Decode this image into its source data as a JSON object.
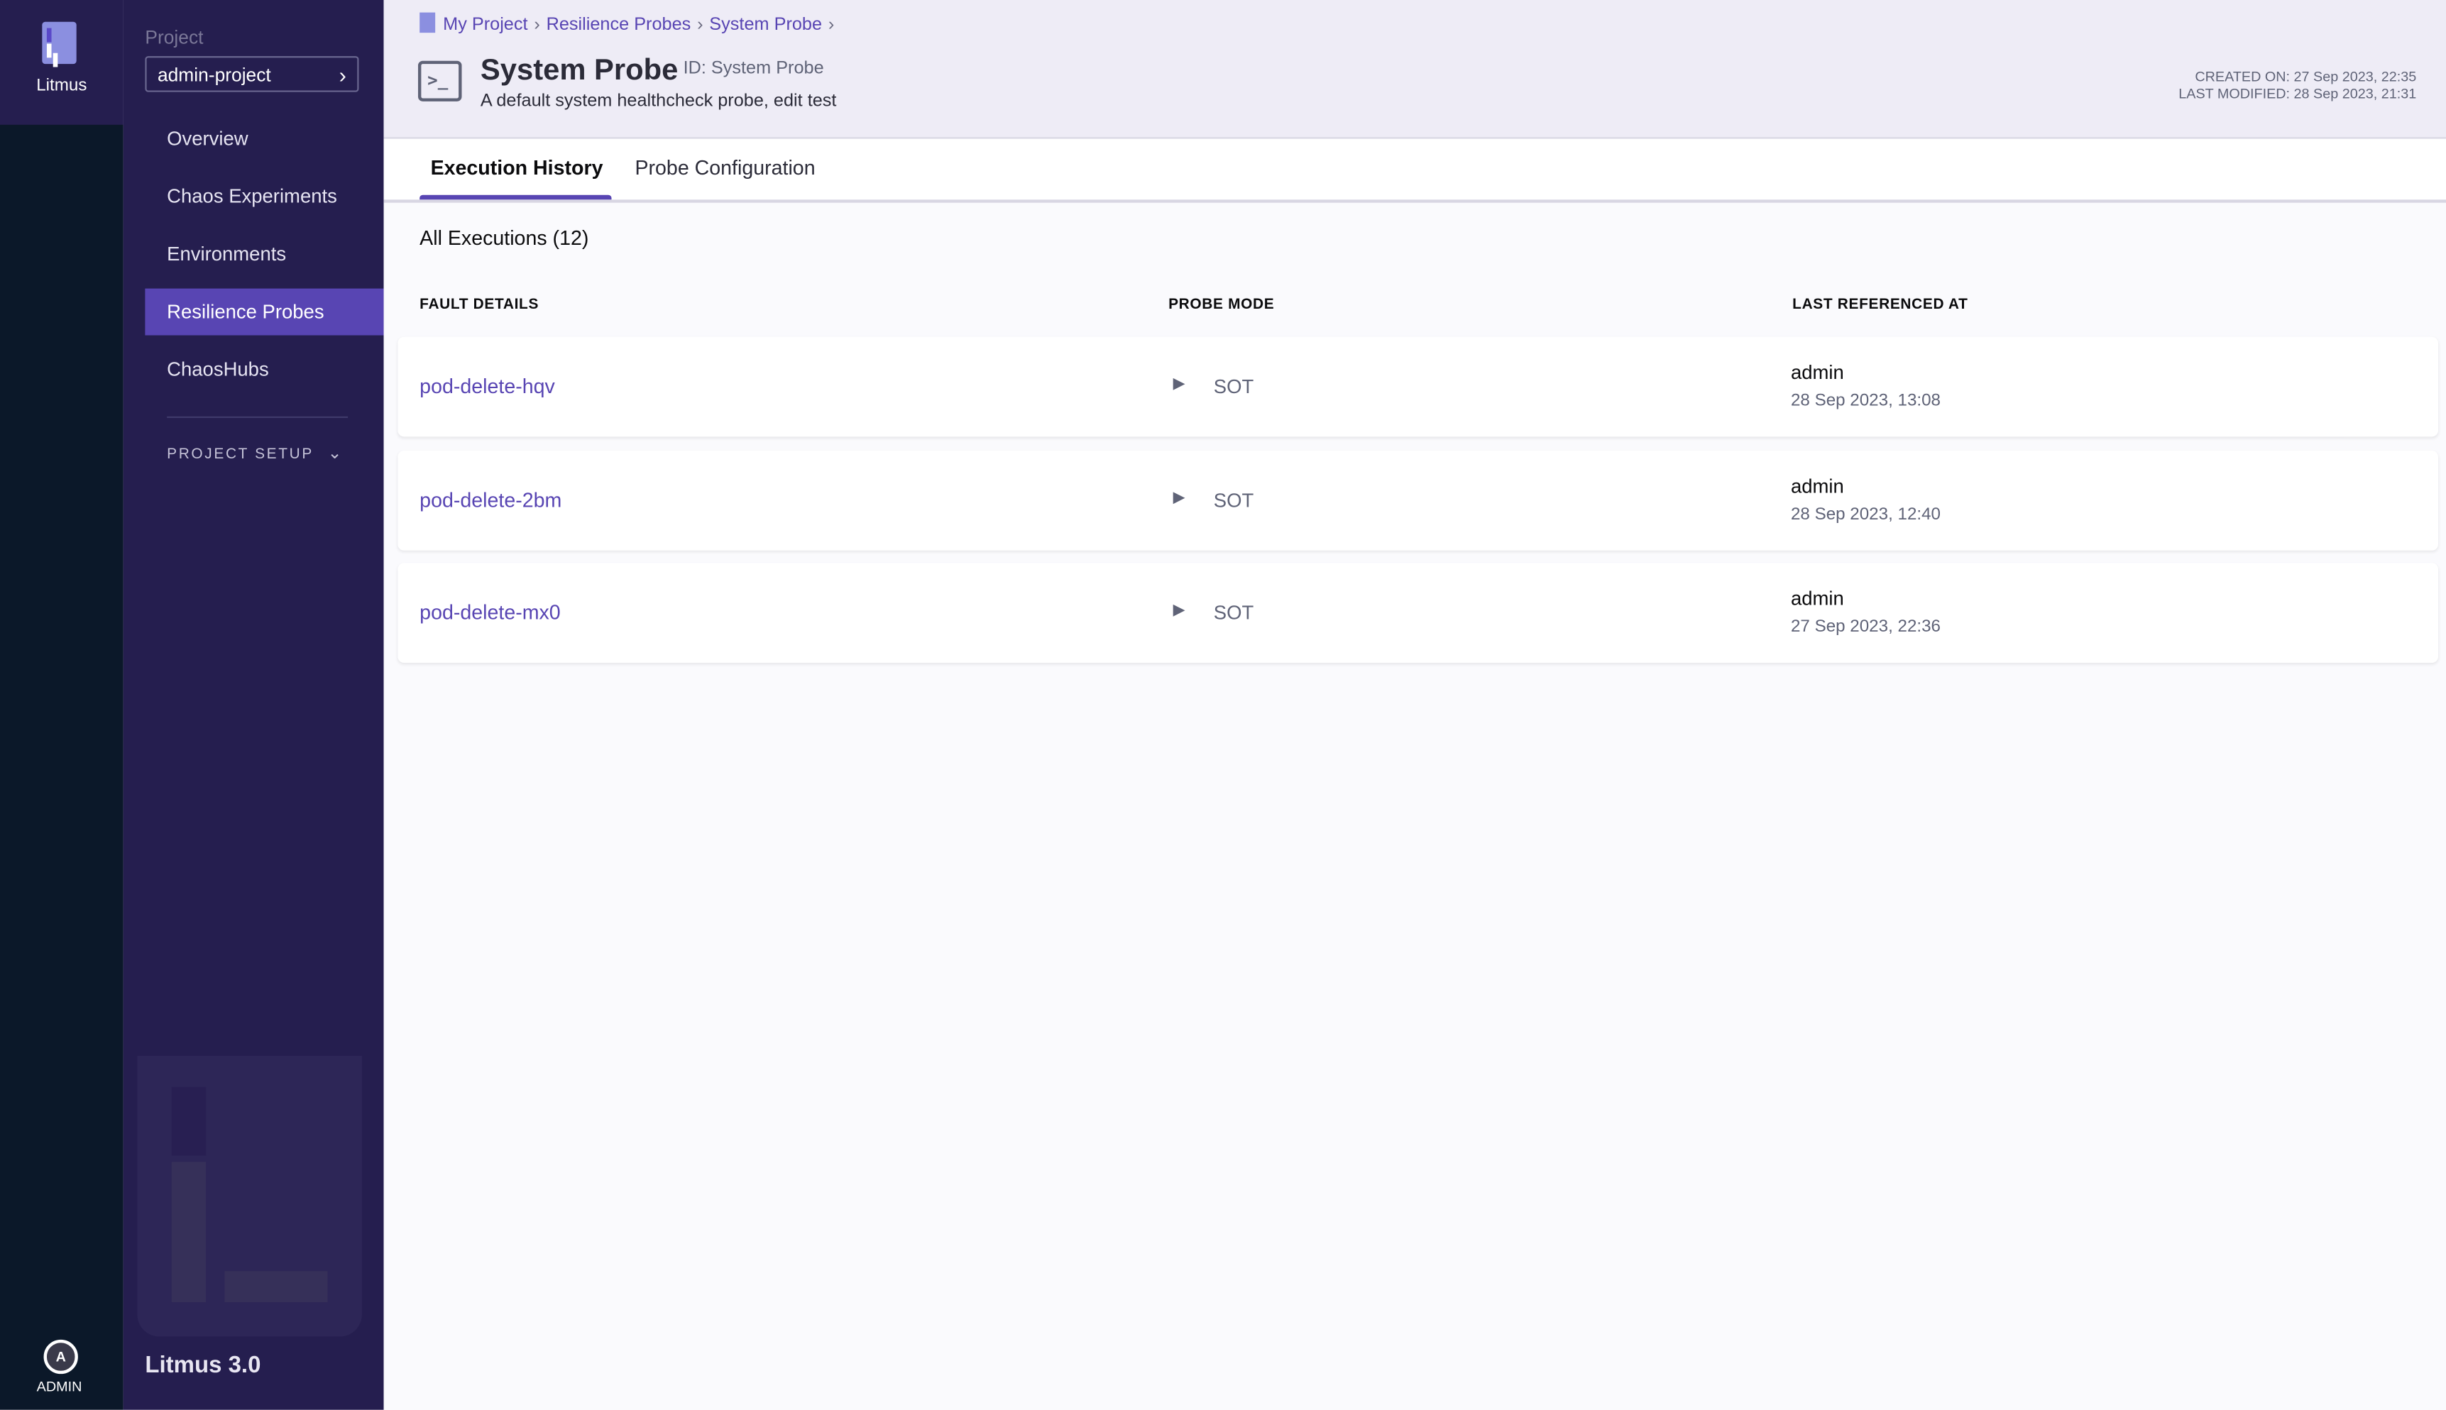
{
  "app": {
    "name": "Litmus",
    "version": "Litmus 3.0",
    "user_initial": "A",
    "user_label": "ADMIN"
  },
  "sidebar": {
    "project_label": "Project",
    "project_value": "admin-project",
    "items": [
      {
        "label": "Overview"
      },
      {
        "label": "Chaos Experiments"
      },
      {
        "label": "Environments"
      },
      {
        "label": "Resilience Probes",
        "active": true
      },
      {
        "label": "ChaosHubs"
      }
    ],
    "project_setup": "PROJECT SETUP"
  },
  "breadcrumb": [
    "My Project",
    "Resilience Probes",
    "System Probe"
  ],
  "header": {
    "title": "System Probe",
    "id": "ID: System Probe",
    "description": "A default system healthcheck probe, edit test",
    "created_on": "CREATED ON: 27 Sep 2023, 22:35",
    "last_modified": "LAST MODIFIED: 28 Sep 2023, 21:31"
  },
  "tabs": [
    {
      "label": "Execution History",
      "active": true
    },
    {
      "label": "Probe Configuration"
    }
  ],
  "table": {
    "count_label": "All Executions (12)",
    "columns": [
      "FAULT DETAILS",
      "PROBE MODE",
      "LAST REFERENCED AT"
    ],
    "rows": [
      {
        "fault": "pod-delete-hqv",
        "mode": "SOT",
        "user": "admin",
        "time": "28 Sep 2023, 13:08"
      },
      {
        "fault": "pod-delete-2bm",
        "mode": "SOT",
        "user": "admin",
        "time": "28 Sep 2023, 12:40"
      },
      {
        "fault": "pod-delete-mx0",
        "mode": "SOT",
        "user": "admin",
        "time": "27 Sep 2023, 22:36"
      }
    ]
  },
  "colors": {
    "accent": "#5845b3",
    "sidebar": "#251e4f",
    "rail": "#0b1829"
  }
}
